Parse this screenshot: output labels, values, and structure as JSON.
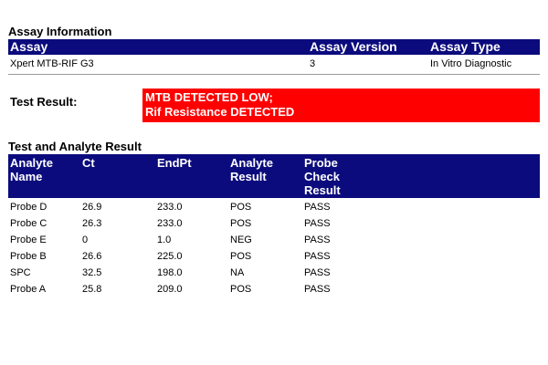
{
  "assay_information": {
    "title": "Assay Information",
    "headers": {
      "assay": "Assay",
      "assay_version": "Assay Version",
      "assay_type": "Assay Type"
    },
    "row": {
      "assay": "Xpert MTB-RIF G3",
      "assay_version": "3",
      "assay_type": "In Vitro Diagnostic"
    }
  },
  "test_result": {
    "label": "Test Result:",
    "line1": "MTB DETECTED LOW;",
    "line2": "Rif Resistance DETECTED",
    "highlight_color": "#ff0000"
  },
  "analyte_results": {
    "title": "Test and Analyte Result",
    "headers": {
      "analyte_name_1": "Analyte",
      "analyte_name_2": "Name",
      "ct": "Ct",
      "endpt": "EndPt",
      "analyte_result_1": "Analyte",
      "analyte_result_2": "Result",
      "probe_check_1": "Probe",
      "probe_check_2": "Check",
      "probe_check_3": "Result"
    },
    "rows": [
      {
        "name": "Probe D",
        "ct": "26.9",
        "endpt": "233.0",
        "result": "POS",
        "probe_check": "PASS"
      },
      {
        "name": "Probe C",
        "ct": "26.3",
        "endpt": "233.0",
        "result": "POS",
        "probe_check": "PASS"
      },
      {
        "name": "Probe E",
        "ct": "0",
        "endpt": "1.0",
        "result": "NEG",
        "probe_check": "PASS"
      },
      {
        "name": "Probe B",
        "ct": "26.6",
        "endpt": "225.0",
        "result": "POS",
        "probe_check": "PASS"
      },
      {
        "name": "SPC",
        "ct": "32.5",
        "endpt": "198.0",
        "result": "NA",
        "probe_check": "PASS"
      },
      {
        "name": "Probe A",
        "ct": "25.8",
        "endpt": "209.0",
        "result": "POS",
        "probe_check": "PASS"
      }
    ]
  },
  "colors": {
    "header_bg": "#0b0b7d",
    "header_text": "#ffffff"
  }
}
